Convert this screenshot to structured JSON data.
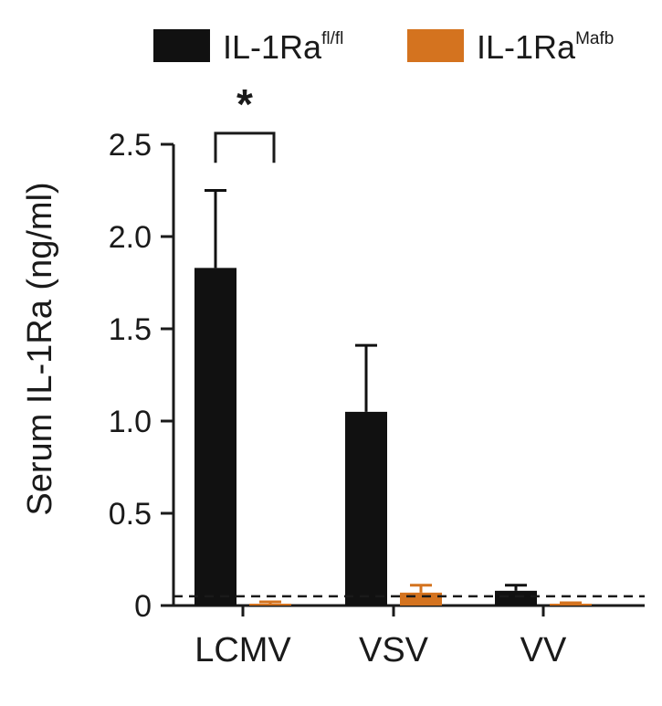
{
  "chart_data": {
    "type": "bar",
    "ylabel": "Serum IL-1Ra (ng/ml)",
    "xlabel": "",
    "ylim": [
      0,
      2.5
    ],
    "yticks": [
      "0",
      "0.5",
      "1.0",
      "1.5",
      "2.0",
      "2.5"
    ],
    "categories": [
      "LCMV",
      "VSV",
      "VV"
    ],
    "series": [
      {
        "name_main": "IL-1Ra",
        "name_sup": "fl/fl",
        "color": "#111111",
        "values": [
          1.83,
          1.05,
          0.08
        ],
        "errors": [
          0.42,
          0.36,
          0.03
        ]
      },
      {
        "name_main": "IL-1Ra",
        "name_sup": "Mafb",
        "color": "#d4731f",
        "values": [
          0.01,
          0.07,
          0.01
        ],
        "errors": [
          0.01,
          0.04,
          0.005
        ]
      }
    ],
    "detection_limit": 0.05,
    "significance": {
      "label": "*",
      "category": "LCMV"
    },
    "legend_position": "top"
  }
}
